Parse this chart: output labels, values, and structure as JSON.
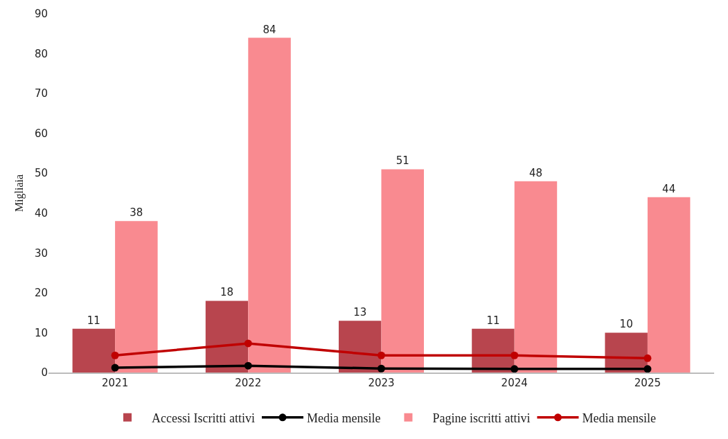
{
  "chart_data": {
    "type": "bar",
    "ylabel": "Migliaia",
    "categories": [
      "2021",
      "2022",
      "2023",
      "2024",
      "2025"
    ],
    "series": [
      {
        "name": "Accessi Iscritti attivi",
        "color": "#b8454e",
        "values": [
          11,
          18,
          13,
          11,
          10
        ],
        "value_labels": [
          "11",
          "18",
          "13",
          "11",
          "10"
        ]
      },
      {
        "name": "Media mensile",
        "type": "line",
        "color": "#000000",
        "values": [
          1.2,
          1.7,
          1.0,
          0.9,
          0.9
        ]
      },
      {
        "name": "Pagine iscritti attivi",
        "color": "#f98a90",
        "values": [
          38,
          84,
          51,
          48,
          44
        ],
        "value_labels": [
          "38",
          "84",
          "51",
          "48",
          "44"
        ]
      },
      {
        "name": "Media mensile",
        "type": "line",
        "color": "#c00000",
        "values": [
          4.3,
          7.3,
          4.3,
          4.3,
          3.6
        ]
      }
    ],
    "ylim": [
      0,
      90
    ],
    "yticks": [
      0,
      10,
      20,
      30,
      40,
      50,
      60,
      70,
      80,
      90
    ],
    "grid": false,
    "legend": "bottom",
    "marker": "circle",
    "line_style": "solid"
  }
}
